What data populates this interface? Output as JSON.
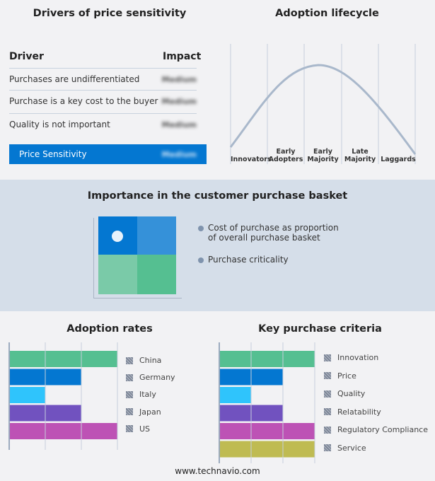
{
  "drivers": {
    "title": "Drivers of price sensitivity",
    "col_driver": "Driver",
    "col_impact": "Impact",
    "rows": [
      {
        "driver": "Purchases are undifferentiated",
        "impact": "Medium"
      },
      {
        "driver": "Purchase is a key cost to the buyer",
        "impact": "Medium"
      },
      {
        "driver": "Quality is not important",
        "impact": "Medium"
      }
    ],
    "summary": {
      "label": "Price Sensitivity",
      "impact": "Medium"
    },
    "summary_color": "#0477d1"
  },
  "lifecycle": {
    "title": "Adoption lifecycle",
    "stages": [
      [
        "Innovators"
      ],
      [
        "Early",
        "Adopters"
      ],
      [
        "Early",
        "Majority"
      ],
      [
        "Late",
        "Majority"
      ],
      [
        "Laggards"
      ]
    ],
    "highlight_stage": "Early Majority"
  },
  "basket": {
    "title": "Importance in the customer purchase basket",
    "legend": [
      "Cost of purchase as proportion of overall purchase basket",
      "Purchase criticality"
    ],
    "quadrant_colors": [
      "#0477d1",
      "#3591d9",
      "#7acaa8",
      "#55bf91"
    ],
    "marker": "high cost / low criticality"
  },
  "chart_data": [
    {
      "type": "bar",
      "title": "Adoption rates",
      "categories": [
        "China",
        "Germany",
        "Italy",
        "Japan",
        "US"
      ],
      "values": [
        3,
        2,
        1,
        2,
        3
      ],
      "xlim": [
        0,
        3
      ],
      "colors": [
        "#55bf91",
        "#0477d1",
        "#2fc4fc",
        "#7152bf",
        "#bd52b5"
      ],
      "grid": true,
      "legend": "right"
    },
    {
      "type": "bar",
      "title": "Key purchase criteria",
      "categories": [
        "Innovation",
        "Price",
        "Quality",
        "Relatability",
        "Regulatory Compliance",
        "Service"
      ],
      "values": [
        3,
        2,
        1,
        2,
        3,
        3
      ],
      "xlim": [
        0,
        3
      ],
      "colors": [
        "#55bf91",
        "#0477d1",
        "#2fc4fc",
        "#7152bf",
        "#bd52b5",
        "#bfbb52"
      ],
      "grid": true,
      "legend": "right"
    }
  ],
  "footer": "www.technavio.com"
}
